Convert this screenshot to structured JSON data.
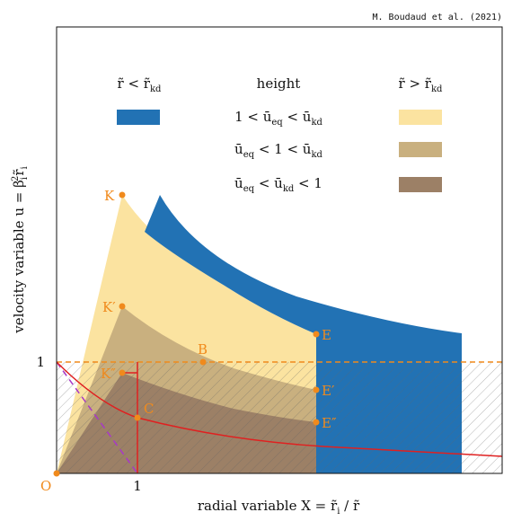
{
  "credit": "M. Boudaud et al. (2021)",
  "axes": {
    "y_label": [
      "velocity variable u = β",
      "i",
      "2",
      "r̃",
      "i"
    ],
    "x_label": [
      "radial variable X = r̃",
      "i",
      " / r̃"
    ],
    "x_tick": "1",
    "y_tick": "1",
    "origin": "O"
  },
  "legend": {
    "left_header": [
      "r̃ < r̃",
      "kd"
    ],
    "middle_header": "height",
    "right_header": [
      "r̃ > r̃",
      "kd"
    ],
    "rows": [
      [
        "1 < ū",
        "eq",
        " < ū",
        "kd"
      ],
      [
        "ū",
        "eq",
        " < 1 < ū",
        "kd"
      ],
      [
        "ū",
        "eq",
        " < ū",
        "kd",
        " < 1"
      ]
    ]
  },
  "points": [
    "K",
    "K′",
    "K″",
    "B",
    "C",
    "E",
    "E′",
    "E″"
  ]
}
